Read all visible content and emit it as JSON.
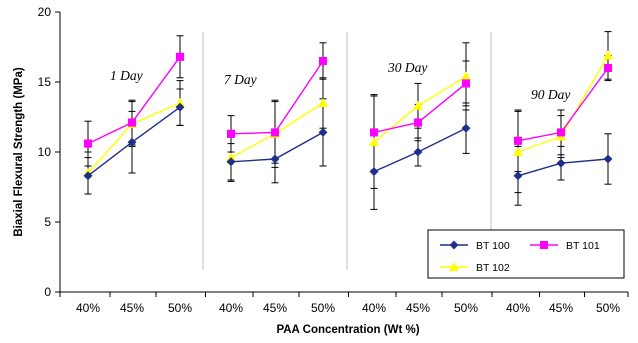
{
  "chart_data": {
    "type": "line",
    "title": "",
    "ylabel": "Biaxial Flexural Strength (MPa)",
    "xlabel": "PAA Concentration (Wt %)",
    "ylim": [
      0,
      20
    ],
    "yticks": [
      0,
      5,
      10,
      15,
      20
    ],
    "categories": [
      "40%",
      "45%",
      "50%"
    ],
    "legend_position": "bottom-right",
    "panels": [
      {
        "label": "1 Day",
        "series": [
          {
            "name": "BT 100",
            "values": [
              8.3,
              10.7,
              13.2
            ],
            "err": [
              1.3,
              2.2,
              1.3
            ]
          },
          {
            "name": "BT 101",
            "values": [
              10.6,
              12.1,
              16.8
            ],
            "err": [
              1.6,
              1.6,
              1.5
            ]
          },
          {
            "name": "BT 102",
            "values": [
              8.5,
              12.0,
              13.5
            ],
            "err": [
              1.5,
              1.6,
              1.6
            ]
          }
        ]
      },
      {
        "label": "7 Day",
        "series": [
          {
            "name": "BT 100",
            "values": [
              9.3,
              9.5,
              11.4
            ],
            "err": [
              1.3,
              1.7,
              2.4
            ]
          },
          {
            "name": "BT 101",
            "values": [
              11.3,
              11.4,
              16.5
            ],
            "err": [
              1.3,
              2.2,
              1.3
            ]
          },
          {
            "name": "BT 102",
            "values": [
              9.6,
              11.3,
              13.5
            ],
            "err": [
              1.7,
              2.4,
              1.8
            ]
          }
        ]
      },
      {
        "label": "30 Day",
        "series": [
          {
            "name": "BT 100",
            "values": [
              8.6,
              10.0,
              11.7
            ],
            "err": [
              2.7,
              1.0,
              1.8
            ]
          },
          {
            "name": "BT 101",
            "values": [
              11.4,
              12.1,
              14.9
            ],
            "err": [
              2.7,
              1.3,
              1.6
            ]
          },
          {
            "name": "BT 102",
            "values": [
              10.7,
              13.3,
              15.4
            ],
            "err": [
              3.3,
              1.6,
              2.4
            ]
          }
        ]
      },
      {
        "label": "90 Day",
        "series": [
          {
            "name": "BT 100",
            "values": [
              8.3,
              9.2,
              9.5
            ],
            "err": [
              2.1,
              1.2,
              1.8
            ]
          },
          {
            "name": "BT 101",
            "values": [
              10.8,
              11.4,
              16.0
            ],
            "err": [
              2.2,
              1.6,
              0.9
            ]
          },
          {
            "name": "BT 102",
            "values": [
              10.0,
              11.1,
              16.9
            ],
            "err": [
              2.9,
              1.5,
              1.7
            ]
          }
        ]
      }
    ],
    "series_styles": {
      "BT 100": {
        "color": "#1f2f8a",
        "marker": "diamond"
      },
      "BT 101": {
        "color": "#ff00ff",
        "marker": "square"
      },
      "BT 102": {
        "color": "#ffff00",
        "marker": "triangle"
      }
    },
    "separator_color": "#c0c0c0",
    "legend_border_color": "#000000"
  }
}
